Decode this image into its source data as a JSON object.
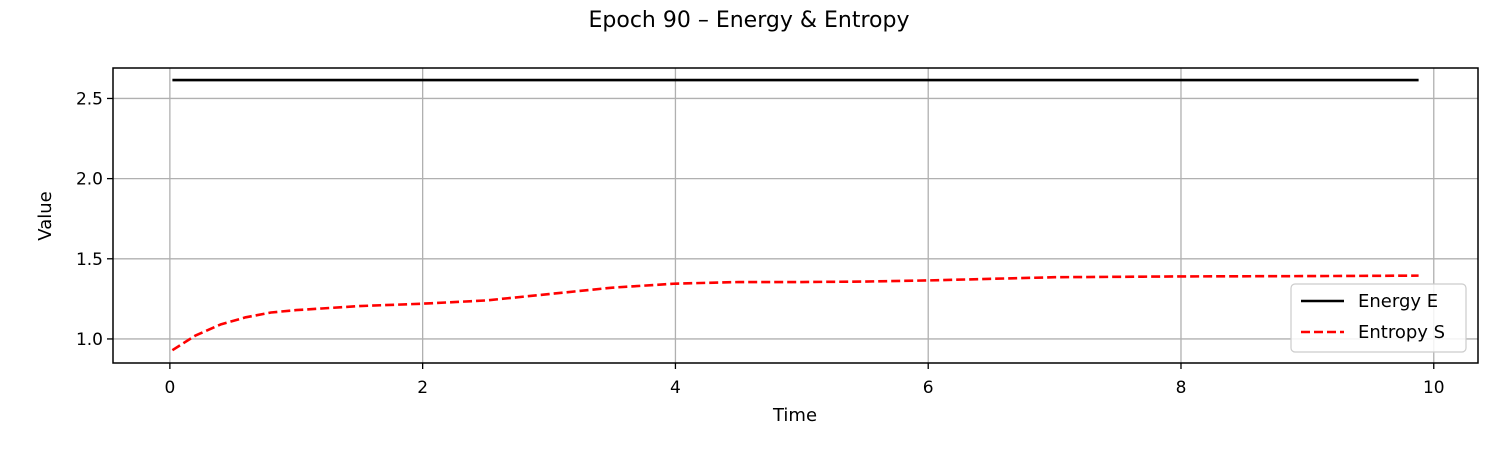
{
  "chart_data": {
    "type": "line",
    "title": "Epoch 90 – Energy & Entropy",
    "xlabel": "Time",
    "ylabel": "Value",
    "xlim": [
      -0.45,
      10.35
    ],
    "ylim": [
      0.85,
      2.69
    ],
    "xticks": [
      0,
      2,
      4,
      6,
      8,
      10
    ],
    "yticks": [
      1.0,
      1.5,
      2.0,
      2.5
    ],
    "xtick_labels": [
      "0",
      "2",
      "4",
      "6",
      "8",
      "10"
    ],
    "ytick_labels": [
      "1.0",
      "1.5",
      "2.0",
      "2.5"
    ],
    "grid": true,
    "legend_position": "lower-right",
    "series": [
      {
        "name": "Energy E",
        "color": "#000000",
        "dash": "solid",
        "x": [
          0.02,
          1,
          2,
          3,
          4,
          5,
          6,
          7,
          8,
          9,
          9.88
        ],
        "y": [
          2.615,
          2.615,
          2.615,
          2.615,
          2.615,
          2.615,
          2.615,
          2.615,
          2.615,
          2.615,
          2.615
        ]
      },
      {
        "name": "Entropy S",
        "color": "#ff0000",
        "dash": "dashed",
        "x": [
          0.02,
          0.2,
          0.4,
          0.6,
          0.8,
          1.0,
          1.2,
          1.5,
          2.0,
          2.5,
          3.0,
          3.5,
          4.0,
          4.5,
          5.0,
          5.5,
          6.0,
          6.5,
          7.0,
          8.0,
          9.0,
          9.88
        ],
        "y": [
          0.93,
          1.02,
          1.09,
          1.135,
          1.165,
          1.18,
          1.19,
          1.205,
          1.22,
          1.24,
          1.28,
          1.32,
          1.345,
          1.355,
          1.355,
          1.358,
          1.365,
          1.375,
          1.385,
          1.39,
          1.392,
          1.395
        ]
      }
    ]
  }
}
